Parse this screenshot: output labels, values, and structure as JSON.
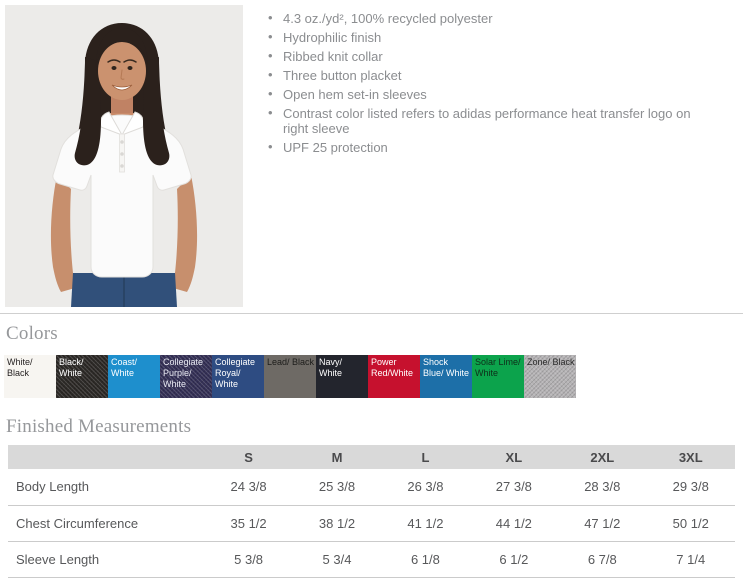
{
  "product_photo": {
    "alt": "Model wearing white short-sleeve polo shirt",
    "background": "#ecebe9"
  },
  "features": {
    "items": [
      "4.3 oz./yd², 100% recycled polyester",
      "Hydrophilic finish",
      "Ribbed knit collar",
      "Three button placket",
      "Open hem set-in sleeves",
      "Contrast color listed refers to adidas performance heat transfer logo on right sleeve",
      "UPF 25 protection"
    ]
  },
  "colors_section": {
    "title": "Colors",
    "swatches": [
      {
        "label": "White/ Black",
        "bg": "#f7f5f1",
        "fg": "#231f20",
        "heather": false
      },
      {
        "label": "Black/ White",
        "bg": "#2c2926",
        "fg": "#ffffff",
        "heather": true
      },
      {
        "label": "Coast/ White",
        "bg": "#1e8fcd",
        "fg": "#ffffff",
        "heather": false
      },
      {
        "label": "Collegiate Purple/ White",
        "bg": "#343056",
        "fg": "#e8e9f2",
        "heather": true
      },
      {
        "label": "Collegiate Royal/ White",
        "bg": "#2e4c82",
        "fg": "#ffffff",
        "heather": false
      },
      {
        "label": "Lead/ Black",
        "bg": "#6e6a65",
        "fg": "#1d1d1b",
        "heather": false
      },
      {
        "label": "Navy/ White",
        "bg": "#23252d",
        "fg": "#ffffff",
        "heather": false
      },
      {
        "label": "Power Red/White",
        "bg": "#c6112e",
        "fg": "#ffffff",
        "heather": false
      },
      {
        "label": "Shock Blue/ White",
        "bg": "#1d6fa8",
        "fg": "#ffffff",
        "heather": false
      },
      {
        "label": "Solar Lime/ White",
        "bg": "#0ca34c",
        "fg": "#0e2f1a",
        "heather": false
      },
      {
        "label": "Zone/ Black",
        "bg": "#b5b3b5",
        "fg": "#2a2a2a",
        "heather": true
      }
    ]
  },
  "measurements": {
    "title": "Finished Measurements",
    "columns": [
      "",
      "S",
      "M",
      "L",
      "XL",
      "2XL",
      "3XL"
    ],
    "rows": [
      {
        "label": "Body Length",
        "values": [
          "24 3/8",
          "25 3/8",
          "26 3/8",
          "27 3/8",
          "28 3/8",
          "29 3/8"
        ]
      },
      {
        "label": "Chest Circumference",
        "values": [
          "35 1/2",
          "38 1/2",
          "41 1/2",
          "44 1/2",
          "47 1/2",
          "50 1/2"
        ]
      },
      {
        "label": "Sleeve Length",
        "values": [
          "5 3/8",
          "5 3/4",
          "6 1/8",
          "6 1/2",
          "6 7/8",
          "7 1/4"
        ]
      }
    ]
  }
}
